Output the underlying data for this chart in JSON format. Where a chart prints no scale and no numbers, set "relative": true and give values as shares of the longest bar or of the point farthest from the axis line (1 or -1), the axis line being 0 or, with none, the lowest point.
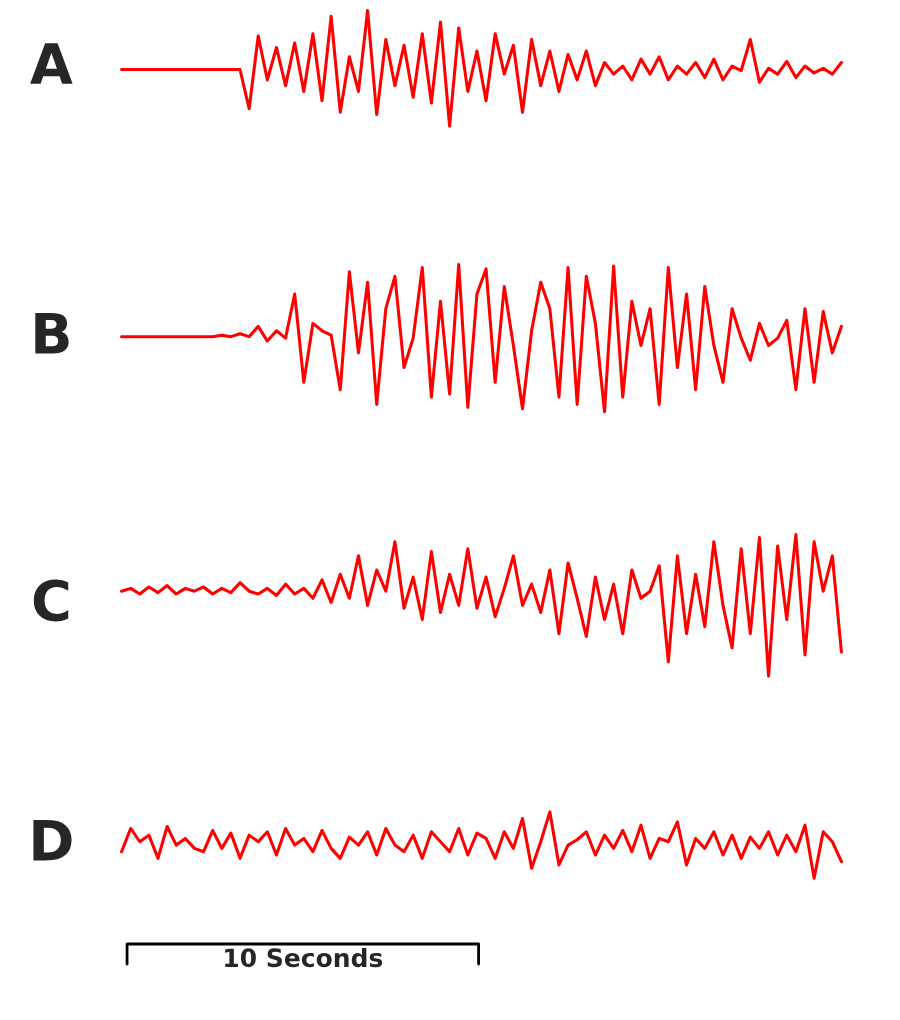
{
  "chart_data": [
    {
      "type": "line",
      "title": "A",
      "relative": true,
      "categories": [
        null,
        null,
        null,
        null,
        null,
        null,
        null,
        null,
        null,
        null,
        null,
        null,
        null,
        null,
        null,
        null,
        null,
        null,
        null,
        null,
        null,
        null,
        null,
        null,
        null,
        null,
        null,
        null,
        null,
        null,
        null,
        null,
        null,
        null,
        null,
        null,
        null,
        null,
        null,
        null,
        null,
        null,
        null,
        null,
        null,
        null,
        null,
        null,
        null,
        null,
        null,
        null,
        null,
        null,
        null,
        null,
        null,
        null,
        null,
        null,
        null,
        null,
        null,
        null,
        null,
        null,
        null,
        null,
        null,
        null,
        null,
        null,
        null,
        null,
        null,
        null,
        null,
        null,
        null,
        null
      ],
      "series": [
        {
          "color": "#ff0000",
          "values": [
            0.49,
            0.49,
            0.49,
            0.49,
            0.49,
            0.49,
            0.49,
            0.49,
            0.49,
            0.49,
            0.49,
            0.49,
            0.49,
            0.49,
            0.15,
            0.78,
            0.4,
            0.68,
            0.35,
            0.72,
            0.3,
            0.8,
            0.22,
            0.95,
            0.12,
            0.6,
            0.3,
            1.0,
            0.1,
            0.75,
            0.35,
            0.7,
            0.25,
            0.8,
            0.2,
            0.9,
            0.0,
            0.85,
            0.3,
            0.65,
            0.22,
            0.8,
            0.45,
            0.7,
            0.12,
            0.75,
            0.35,
            0.65,
            0.3,
            0.62,
            0.4,
            0.65,
            0.35,
            0.55,
            0.45,
            0.52,
            0.4,
            0.58,
            0.45,
            0.6,
            0.4,
            0.52,
            0.45,
            0.55,
            0.42,
            0.58,
            0.4,
            0.52,
            0.48,
            0.75,
            0.38,
            0.5,
            0.45,
            0.56,
            0.42,
            0.52,
            0.46,
            0.5,
            0.45,
            0.55
          ]
        }
      ]
    },
    {
      "type": "line",
      "title": "B",
      "relative": true,
      "categories": [
        null,
        null,
        null,
        null,
        null,
        null,
        null,
        null,
        null,
        null,
        null,
        null,
        null,
        null,
        null,
        null,
        null,
        null,
        null,
        null,
        null,
        null,
        null,
        null,
        null,
        null,
        null,
        null,
        null,
        null,
        null,
        null,
        null,
        null,
        null,
        null,
        null,
        null,
        null,
        null,
        null,
        null,
        null,
        null,
        null,
        null,
        null,
        null,
        null,
        null,
        null,
        null,
        null,
        null,
        null,
        null,
        null,
        null,
        null,
        null,
        null,
        null,
        null,
        null,
        null,
        null,
        null,
        null,
        null,
        null,
        null,
        null,
        null,
        null,
        null,
        null,
        null,
        null,
        null,
        null
      ],
      "series": [
        {
          "color": "#ff0000",
          "values": [
            0.51,
            0.51,
            0.51,
            0.51,
            0.51,
            0.51,
            0.51,
            0.51,
            0.51,
            0.51,
            0.51,
            0.52,
            0.51,
            0.53,
            0.51,
            0.58,
            0.48,
            0.55,
            0.5,
            0.8,
            0.2,
            0.6,
            0.55,
            0.52,
            0.15,
            0.95,
            0.4,
            0.88,
            0.05,
            0.7,
            0.92,
            0.3,
            0.5,
            0.98,
            0.1,
            0.75,
            0.12,
            1.0,
            0.03,
            0.8,
            0.97,
            0.2,
            0.85,
            0.45,
            0.02,
            0.55,
            0.88,
            0.7,
            0.1,
            0.98,
            0.05,
            0.92,
            0.6,
            0.0,
            0.99,
            0.1,
            0.75,
            0.45,
            0.7,
            0.05,
            0.98,
            0.3,
            0.8,
            0.15,
            0.85,
            0.45,
            0.2,
            0.7,
            0.5,
            0.35,
            0.6,
            0.45,
            0.5,
            0.62,
            0.15,
            0.7,
            0.2,
            0.68,
            0.4,
            0.58
          ]
        }
      ]
    },
    {
      "type": "line",
      "title": "C",
      "relative": true,
      "categories": [
        null,
        null,
        null,
        null,
        null,
        null,
        null,
        null,
        null,
        null,
        null,
        null,
        null,
        null,
        null,
        null,
        null,
        null,
        null,
        null,
        null,
        null,
        null,
        null,
        null,
        null,
        null,
        null,
        null,
        null,
        null,
        null,
        null,
        null,
        null,
        null,
        null,
        null,
        null,
        null,
        null,
        null,
        null,
        null,
        null,
        null,
        null,
        null,
        null,
        null,
        null,
        null,
        null,
        null,
        null,
        null,
        null,
        null,
        null,
        null,
        null,
        null,
        null,
        null,
        null,
        null,
        null,
        null,
        null,
        null,
        null,
        null,
        null,
        null,
        null,
        null,
        null,
        null,
        null,
        null
      ],
      "series": [
        {
          "color": "#ff0000",
          "values": [
            0.6,
            0.62,
            0.58,
            0.63,
            0.59,
            0.64,
            0.58,
            0.62,
            0.6,
            0.63,
            0.58,
            0.62,
            0.59,
            0.66,
            0.6,
            0.58,
            0.62,
            0.57,
            0.65,
            0.58,
            0.62,
            0.55,
            0.68,
            0.52,
            0.72,
            0.55,
            0.85,
            0.5,
            0.75,
            0.6,
            0.95,
            0.48,
            0.7,
            0.4,
            0.88,
            0.45,
            0.72,
            0.5,
            0.9,
            0.48,
            0.7,
            0.42,
            0.62,
            0.85,
            0.5,
            0.65,
            0.45,
            0.75,
            0.3,
            0.8,
            0.55,
            0.28,
            0.7,
            0.4,
            0.65,
            0.3,
            0.75,
            0.55,
            0.6,
            0.78,
            0.1,
            0.85,
            0.3,
            0.72,
            0.35,
            0.95,
            0.5,
            0.2,
            0.9,
            0.3,
            0.98,
            0.0,
            0.92,
            0.4,
            1.0,
            0.15,
            0.95,
            0.6,
            0.85,
            0.17
          ]
        }
      ]
    },
    {
      "type": "line",
      "title": "D",
      "relative": true,
      "annotations": [
        "10 Seconds"
      ],
      "categories": [
        null,
        null,
        null,
        null,
        null,
        null,
        null,
        null,
        null,
        null,
        null,
        null,
        null,
        null,
        null,
        null,
        null,
        null,
        null,
        null,
        null,
        null,
        null,
        null,
        null,
        null,
        null,
        null,
        null,
        null,
        null,
        null,
        null,
        null,
        null,
        null,
        null,
        null,
        null,
        null,
        null,
        null,
        null,
        null,
        null,
        null,
        null,
        null,
        null,
        null,
        null,
        null,
        null,
        null,
        null,
        null,
        null,
        null,
        null,
        null,
        null,
        null,
        null,
        null,
        null,
        null,
        null,
        null,
        null,
        null,
        null,
        null,
        null,
        null,
        null,
        null,
        null,
        null,
        null,
        null
      ],
      "series": [
        {
          "color": "#ff0000",
          "values": [
            0.4,
            0.75,
            0.55,
            0.65,
            0.3,
            0.78,
            0.5,
            0.6,
            0.45,
            0.4,
            0.72,
            0.45,
            0.68,
            0.3,
            0.65,
            0.55,
            0.7,
            0.35,
            0.75,
            0.5,
            0.6,
            0.4,
            0.72,
            0.45,
            0.3,
            0.62,
            0.5,
            0.7,
            0.35,
            0.75,
            0.5,
            0.4,
            0.65,
            0.3,
            0.7,
            0.55,
            0.4,
            0.75,
            0.35,
            0.68,
            0.6,
            0.3,
            0.7,
            0.45,
            0.9,
            0.15,
            0.55,
            1.0,
            0.2,
            0.5,
            0.58,
            0.7,
            0.35,
            0.65,
            0.45,
            0.72,
            0.4,
            0.8,
            0.3,
            0.6,
            0.55,
            0.85,
            0.2,
            0.6,
            0.45,
            0.7,
            0.35,
            0.65,
            0.3,
            0.62,
            0.45,
            0.7,
            0.35,
            0.65,
            0.4,
            0.8,
            0.0,
            0.7,
            0.55,
            0.25
          ]
        }
      ]
    }
  ]
}
